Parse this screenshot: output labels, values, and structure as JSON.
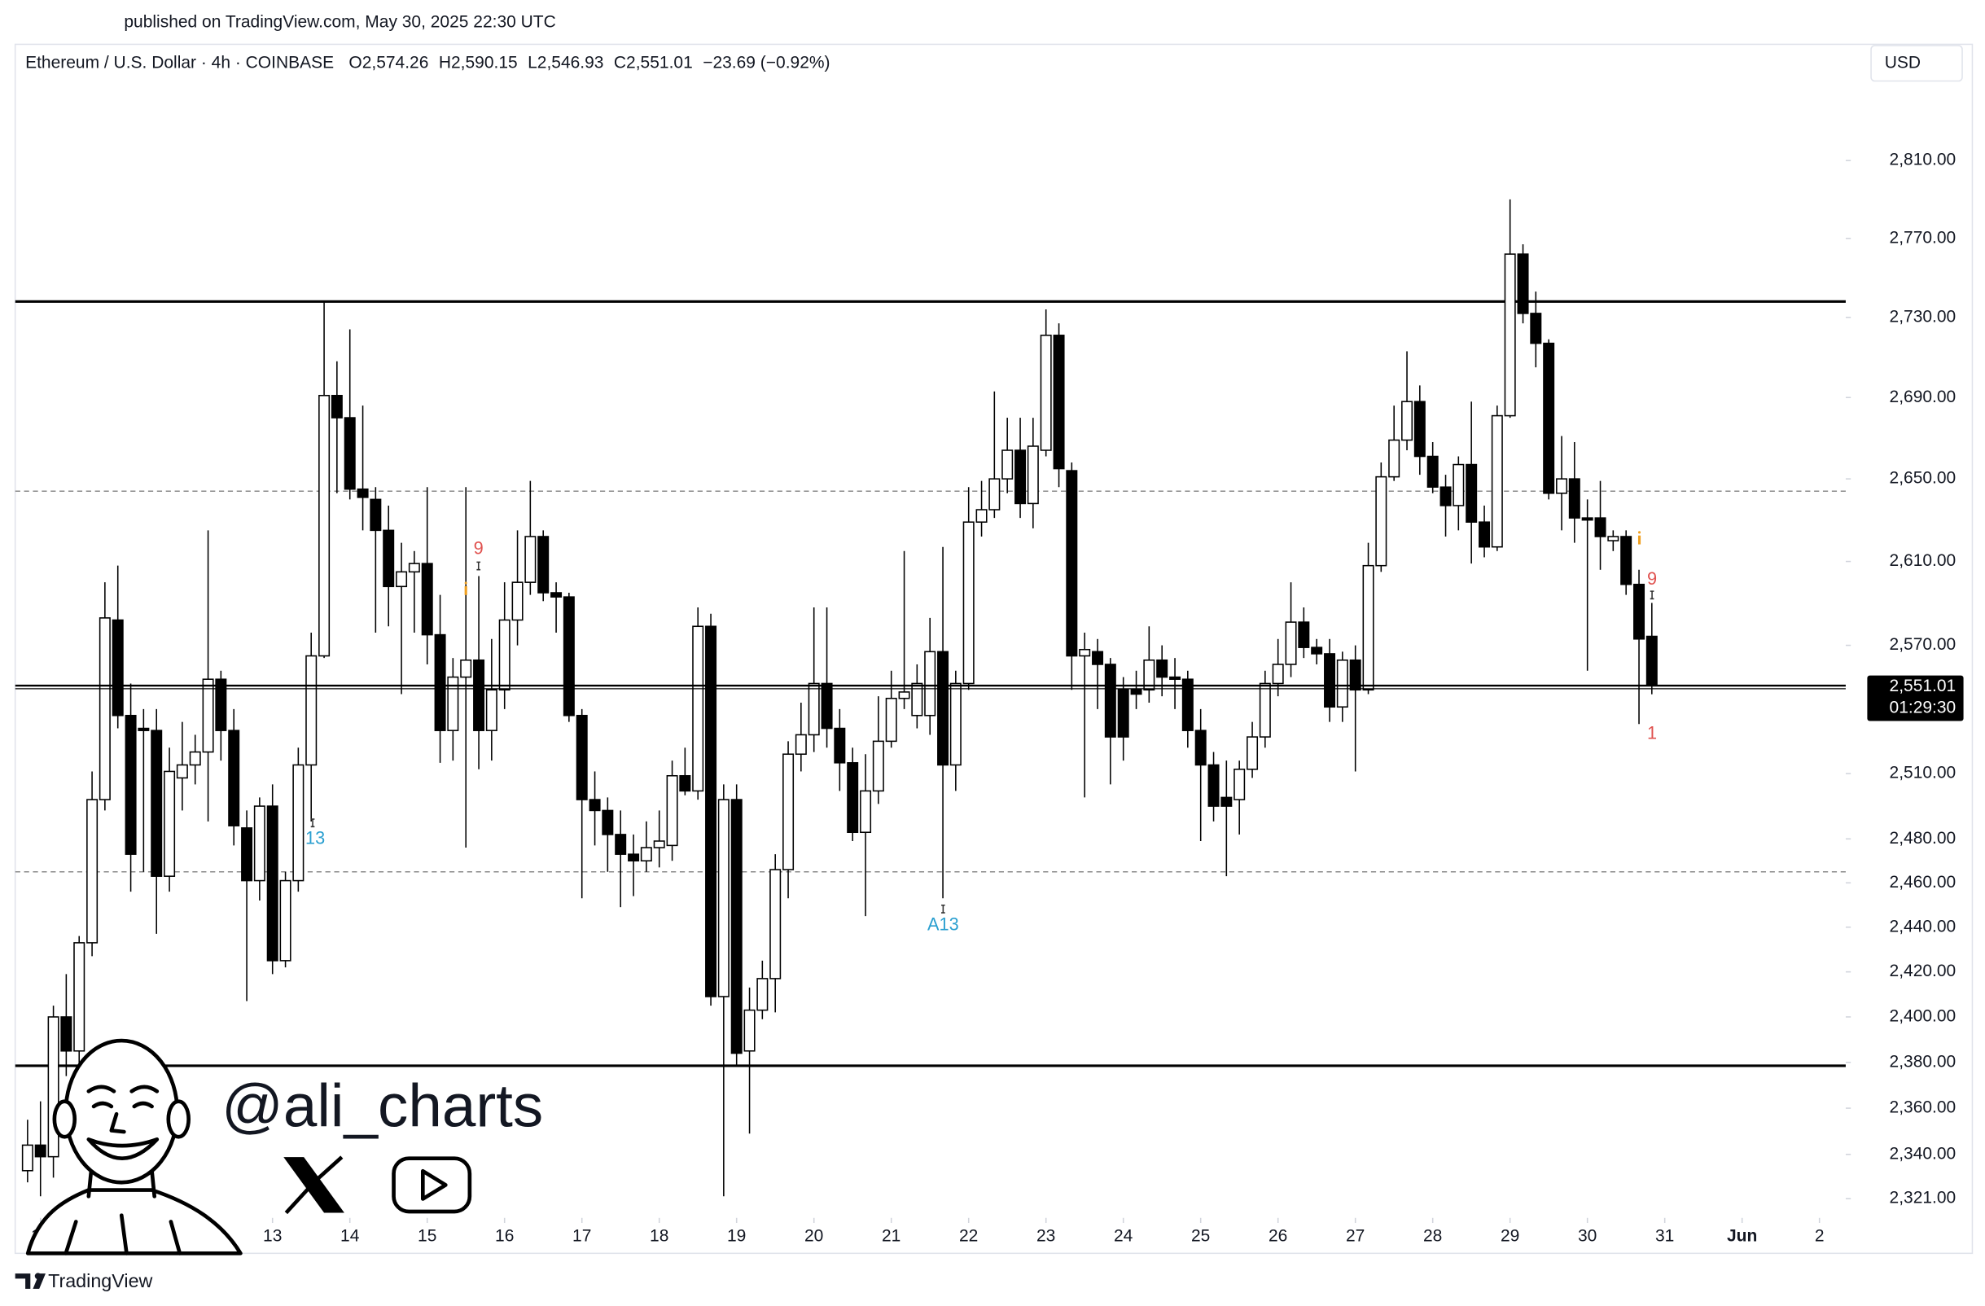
{
  "published": "published on TradingView.com, May 30, 2025 22:30 UTC",
  "brand": "TradingView",
  "watermark": "@ali_charts",
  "currency_button": "USD",
  "chart_data": {
    "type": "candlestick",
    "title": "Ethereum / U.S. Dollar · 4h · COINBASE",
    "legend": [
      "O2,574.26",
      "H2,590.15",
      "L2,546.93",
      "C2,551.01",
      "−23.69 (−0.92%)"
    ],
    "log": true,
    "grid": false,
    "up_color": "#ffffff",
    "down_color": "#000000",
    "border_color": "#000000",
    "x": [
      9.833,
      10,
      10.167,
      10.333,
      10.5,
      10.667,
      10.833,
      11,
      11.167,
      11.333,
      11.5,
      11.667,
      11.833,
      12,
      12.167,
      12.333,
      12.5,
      12.667,
      12.833,
      13,
      13.167,
      13.333,
      13.5,
      13.667,
      13.833,
      14,
      14.167,
      14.333,
      14.5,
      14.667,
      14.833,
      15,
      15.167,
      15.333,
      15.5,
      15.667,
      15.833,
      16,
      16.167,
      16.333,
      16.5,
      16.667,
      16.833,
      17,
      17.167,
      17.333,
      17.5,
      17.667,
      17.833,
      18,
      18.167,
      18.333,
      18.5,
      18.667,
      18.833,
      19,
      19.167,
      19.333,
      19.5,
      19.667,
      19.833,
      20,
      20.167,
      20.333,
      20.5,
      20.667,
      20.833,
      21,
      21.167,
      21.333,
      21.5,
      21.667,
      21.833,
      22,
      22.167,
      22.333,
      22.5,
      22.667,
      22.833,
      23,
      23.167,
      23.333,
      23.5,
      23.667,
      23.833,
      24,
      24.167,
      24.333,
      24.5,
      24.667,
      24.833,
      25,
      25.167,
      25.333,
      25.5,
      25.667,
      25.833,
      26,
      26.167,
      26.333,
      26.5,
      26.667,
      26.833,
      27,
      27.167,
      27.333,
      27.5,
      27.667,
      27.833,
      28,
      28.167,
      28.333,
      28.5,
      28.667,
      28.833,
      29,
      29.167,
      29.333,
      29.5,
      29.667,
      29.833,
      30,
      30.167,
      30.333,
      30.5,
      30.667,
      30.833
    ],
    "open": [
      2333,
      2344,
      2339,
      2400,
      2385,
      2433,
      2498,
      2582,
      2537,
      2531,
      2530,
      2463,
      2508,
      2514,
      2520,
      2554,
      2530,
      2485,
      2461,
      2495,
      2425,
      2461,
      2514,
      2565,
      2691,
      2680,
      2645,
      2640,
      2625,
      2598,
      2605,
      2609,
      2575,
      2530,
      2555,
      2563,
      2530,
      2549,
      2582,
      2600,
      2622,
      2595,
      2593,
      2537,
      2498,
      2493,
      2482,
      2473,
      2470,
      2476,
      2477,
      2509,
      2502,
      2579,
      2409,
      2498,
      2385,
      2403,
      2417,
      2466,
      2519,
      2528,
      2552,
      2531,
      2515,
      2483,
      2502,
      2525,
      2545,
      2537,
      2537,
      2567,
      2514,
      2552,
      2629,
      2635,
      2650,
      2664,
      2638,
      2664,
      2721,
      2654,
      2565,
      2567,
      2561,
      2549,
      2549,
      2549,
      2563,
      2555,
      2554,
      2530,
      2514,
      2499,
      2498,
      2512,
      2527,
      2552,
      2561,
      2581,
      2569,
      2566,
      2541,
      2563,
      2549,
      2608,
      2651,
      2669,
      2688,
      2661,
      2646,
      2637,
      2657,
      2629,
      2617,
      2681,
      2762,
      2732,
      2717,
      2643,
      2650,
      2631,
      2631,
      2620,
      2622,
      2599,
      2574.26
    ],
    "high": [
      2355,
      2363,
      2405,
      2419,
      2436,
      2511,
      2600,
      2608,
      2552,
      2540,
      2540,
      2522,
      2534,
      2528,
      2625,
      2558,
      2540,
      2493,
      2499,
      2505,
      2465,
      2522,
      2576,
      2738,
      2708,
      2724,
      2686,
      2646,
      2637,
      2619,
      2615,
      2646,
      2594,
      2564,
      2646,
      2603,
      2573,
      2600,
      2625,
      2649,
      2625,
      2600,
      2595,
      2540,
      2511,
      2499,
      2493,
      2482,
      2488,
      2493,
      2516,
      2522,
      2588,
      2585,
      2505,
      2505,
      2413,
      2425,
      2473,
      2525,
      2543,
      2588,
      2588,
      2540,
      2522,
      2519,
      2546,
      2558,
      2615,
      2561,
      2583,
      2617,
      2558,
      2646,
      2649,
      2693,
      2680,
      2680,
      2680,
      2734,
      2727,
      2658,
      2576,
      2573,
      2564,
      2555,
      2558,
      2579,
      2570,
      2564,
      2558,
      2540,
      2520,
      2516,
      2516,
      2534,
      2558,
      2573,
      2600,
      2588,
      2573,
      2573,
      2567,
      2570,
      2619,
      2658,
      2686,
      2713,
      2696,
      2668,
      2652,
      2661,
      2688,
      2637,
      2686,
      2790,
      2767,
      2743,
      2719,
      2671,
      2668,
      2640,
      2649,
      2625,
      2625,
      2606,
      2590.15
    ],
    "low": [
      2328,
      2322,
      2330,
      2374,
      2379,
      2427,
      2493,
      2531,
      2456,
      2465,
      2437,
      2456,
      2493,
      2505,
      2488,
      2516,
      2477,
      2407,
      2452,
      2419,
      2422,
      2456,
      2488,
      2564,
      2643,
      2640,
      2625,
      2576,
      2579,
      2547,
      2576,
      2561,
      2515,
      2516,
      2476,
      2512,
      2516,
      2540,
      2570,
      2594,
      2591,
      2576,
      2534,
      2453,
      2477,
      2465,
      2449,
      2454,
      2465,
      2467,
      2470,
      2500,
      2498,
      2405,
      2322,
      2379,
      2349,
      2399,
      2402,
      2453,
      2511,
      2520,
      2522,
      2502,
      2479,
      2445,
      2496,
      2522,
      2540,
      2531,
      2528,
      2453,
      2502,
      2549,
      2622,
      2631,
      2643,
      2631,
      2626,
      2661,
      2646,
      2549,
      2499,
      2540,
      2505,
      2516,
      2540,
      2543,
      2546,
      2540,
      2522,
      2479,
      2488,
      2463,
      2482,
      2508,
      2522,
      2546,
      2555,
      2564,
      2561,
      2534,
      2534,
      2511,
      2547,
      2605,
      2649,
      2664,
      2652,
      2643,
      2622,
      2625,
      2609,
      2612,
      2615,
      2680,
      2727,
      2705,
      2640,
      2625,
      2619,
      2558,
      2606,
      2615,
      2594,
      2533,
      2546.93
    ],
    "close": [
      2344,
      2339,
      2400,
      2385,
      2433,
      2498,
      2583,
      2537,
      2473,
      2530,
      2463,
      2511,
      2514,
      2520,
      2554,
      2530,
      2486,
      2461,
      2495,
      2425,
      2461,
      2514,
      2565,
      2691,
      2680,
      2645,
      2641,
      2625,
      2598,
      2605,
      2609,
      2575,
      2530,
      2555,
      2563,
      2530,
      2549,
      2582,
      2600,
      2622,
      2595,
      2593,
      2537,
      2498,
      2493,
      2482,
      2473,
      2470,
      2476,
      2479,
      2509,
      2502,
      2579,
      2409,
      2498,
      2384,
      2403,
      2417,
      2466,
      2519,
      2528,
      2552,
      2531,
      2515,
      2483,
      2502,
      2525,
      2545,
      2548,
      2552,
      2567,
      2514,
      2552,
      2629,
      2635,
      2650,
      2664,
      2638,
      2666,
      2721,
      2655,
      2565,
      2568,
      2561,
      2527,
      2527,
      2547,
      2563,
      2555,
      2554,
      2530,
      2514,
      2495,
      2495,
      2512,
      2527,
      2552,
      2561,
      2581,
      2569,
      2566,
      2541,
      2563,
      2549,
      2608,
      2651,
      2669,
      2688,
      2661,
      2646,
      2637,
      2657,
      2629,
      2617,
      2681,
      2762,
      2732,
      2717,
      2643,
      2650,
      2631,
      2630,
      2622,
      2622,
      2599,
      2573,
      2551.01
    ],
    "xlim": [
      9.673,
      33.34
    ],
    "xticks": [
      10,
      11,
      12,
      13,
      14,
      15,
      16,
      17,
      18,
      19,
      20,
      21,
      22,
      23,
      24,
      25,
      26,
      27,
      28,
      29,
      30,
      31,
      {
        "value": 32,
        "label": "Jun"
      },
      {
        "value": 33,
        "label": "2"
      }
    ],
    "ylim": [
      2312.8,
      2870.8
    ],
    "yticks": [
      {
        "value": 2321,
        "label": "2,321.00"
      },
      {
        "value": 2340,
        "label": "2,340.00"
      },
      {
        "value": 2360,
        "label": "2,360.00"
      },
      {
        "value": 2380,
        "label": "2,380.00"
      },
      {
        "value": 2400,
        "label": "2,400.00"
      },
      {
        "value": 2420,
        "label": "2,420.00"
      },
      {
        "value": 2440,
        "label": "2,440.00"
      },
      {
        "value": 2460,
        "label": "2,460.00"
      },
      {
        "value": 2480,
        "label": "2,480.00"
      },
      {
        "value": 2510,
        "label": "2,510.00"
      },
      {
        "value": 2570,
        "label": "2,570.00"
      },
      {
        "value": 2610,
        "label": "2,610.00"
      },
      {
        "value": 2650,
        "label": "2,650.00"
      },
      {
        "value": 2690,
        "label": "2,690.00"
      },
      {
        "value": 2730,
        "label": "2,730.00"
      },
      {
        "value": 2770,
        "label": "2,770.00"
      },
      {
        "value": 2810,
        "label": "2,810.00"
      }
    ],
    "levels": [
      {
        "value": 2738,
        "style": "solid"
      },
      {
        "value": 2644,
        "style": "dashed"
      },
      {
        "value": 2465,
        "style": "dashed"
      },
      {
        "value": 2378.5,
        "style": "solid"
      }
    ],
    "last_price_label": "2,551.01",
    "countdown": "01:29:30",
    "annotations": [
      {
        "text": "13",
        "color": "#2a9fd0"
      },
      {
        "text": "A13",
        "color": "#2a9fd0"
      },
      {
        "text": "9",
        "color": "#e0524f"
      },
      {
        "text": "9",
        "color": "#e0524f"
      },
      {
        "text": "1",
        "color": "#e0524f"
      }
    ]
  }
}
